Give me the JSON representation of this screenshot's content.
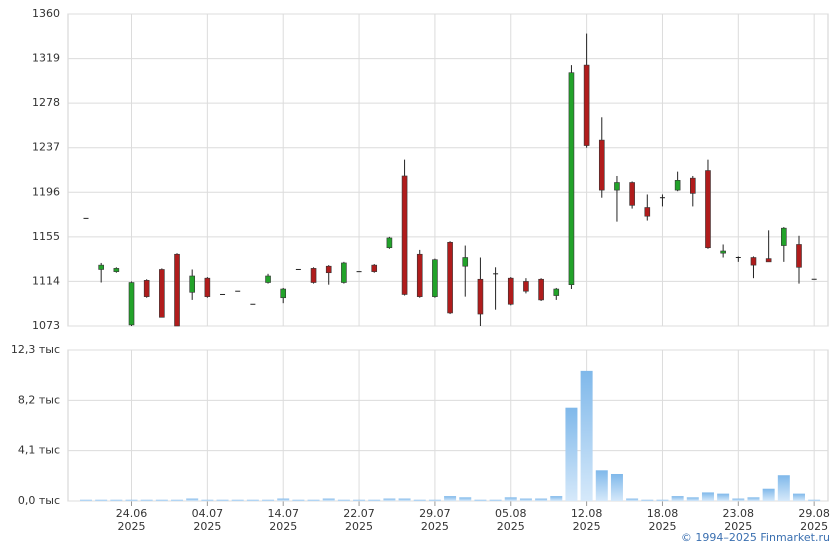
{
  "copyright": "© 1994–2025 Finmarket.ru",
  "chart_data": [
    {
      "type": "candlestick",
      "open": [
        1172,
        1125,
        1123,
        1074,
        1115,
        1125,
        1139,
        1104,
        1117,
        1102,
        1105,
        1093,
        1113,
        1099,
        1125,
        1126,
        1128,
        1113,
        1123,
        1129,
        1145,
        1211,
        1139,
        1100,
        1150,
        1128,
        1116,
        1121,
        1117,
        1114,
        1116,
        1101,
        1111,
        1313,
        1244,
        1198,
        1205,
        1182,
        1191,
        1198,
        1209,
        1216,
        1140,
        1136,
        1136,
        1135,
        1147,
        1148,
        1116
      ],
      "high": [
        1172,
        1131,
        1127,
        1114,
        1116,
        1126,
        1140,
        1125,
        1118,
        1102,
        1105,
        1093,
        1121,
        1108,
        1125,
        1127,
        1129,
        1132,
        1123,
        1130,
        1155,
        1226,
        1143,
        1135,
        1151,
        1147,
        1136,
        1127,
        1118,
        1117,
        1117,
        1108,
        1313,
        1342,
        1265,
        1211,
        1206,
        1194,
        1194,
        1215,
        1211,
        1226,
        1148,
        1137,
        1137,
        1161,
        1164,
        1156,
        1116
      ],
      "low": [
        1172,
        1113,
        1122,
        1073,
        1099,
        1081,
        1073,
        1097,
        1099,
        1102,
        1105,
        1093,
        1112,
        1094,
        1125,
        1112,
        1111,
        1112,
        1123,
        1122,
        1144,
        1101,
        1099,
        1099,
        1084,
        1100,
        1073,
        1088,
        1092,
        1103,
        1096,
        1097,
        1107,
        1237,
        1191,
        1169,
        1181,
        1170,
        1183,
        1197,
        1183,
        1144,
        1136,
        1132,
        1117,
        1132,
        1132,
        1112,
        1116
      ],
      "close": [
        1172,
        1129,
        1126,
        1113,
        1100,
        1081,
        1073,
        1119,
        1100,
        1102,
        1105,
        1093,
        1119,
        1107,
        1125,
        1113,
        1122,
        1131,
        1123,
        1123,
        1154,
        1102,
        1100,
        1134,
        1085,
        1136,
        1084,
        1121,
        1093,
        1105,
        1097,
        1107,
        1306,
        1239,
        1198,
        1205,
        1184,
        1174,
        1191,
        1207,
        1195,
        1145,
        1142,
        1136,
        1129,
        1132,
        1163,
        1127,
        1116
      ],
      "up_color": "#22a32a",
      "down_color": "#b01c1c",
      "ylim": [
        1073,
        1360
      ],
      "yticks": [
        1073,
        1114,
        1155,
        1196,
        1237,
        1278,
        1319,
        1360
      ],
      "grid": true
    },
    {
      "type": "bar",
      "categories": [
        null,
        null,
        null,
        "24.06 2025",
        null,
        null,
        null,
        null,
        "04.07 2025",
        null,
        null,
        null,
        null,
        "14.07 2025",
        null,
        null,
        null,
        null,
        "22.07 2025",
        null,
        null,
        null,
        null,
        "29.07 2025",
        null,
        null,
        null,
        null,
        "05.08 2025",
        null,
        null,
        null,
        null,
        "12.08 2025",
        null,
        null,
        null,
        null,
        "18.08 2025",
        null,
        null,
        null,
        null,
        "23.08 2025",
        null,
        null,
        null,
        null,
        "29.08 2025"
      ],
      "values": [
        0.1,
        0.1,
        0.1,
        0.1,
        0.1,
        0.1,
        0.1,
        0.2,
        0.1,
        0.1,
        0.1,
        0.1,
        0.1,
        0.2,
        0.1,
        0.1,
        0.2,
        0.1,
        0.1,
        0.1,
        0.2,
        0.2,
        0.1,
        0.1,
        0.4,
        0.3,
        0.1,
        0.1,
        0.3,
        0.2,
        0.2,
        0.4,
        7.6,
        10.6,
        2.5,
        2.2,
        0.2,
        0.1,
        0.1,
        0.4,
        0.3,
        0.7,
        0.6,
        0.2,
        0.3,
        1.0,
        2.1,
        0.6,
        0.1
      ],
      "color": "#8cc2ef",
      "ylim": [
        0,
        12.3
      ],
      "yticks": [
        {
          "value": 0,
          "label": "0,0 тыс"
        },
        {
          "value": 4.1,
          "label": "4,1 тыс"
        },
        {
          "value": 8.2,
          "label": "8,2 тыс"
        },
        {
          "value": 12.3,
          "label": "12,3 тыс"
        }
      ],
      "grid": true
    }
  ]
}
